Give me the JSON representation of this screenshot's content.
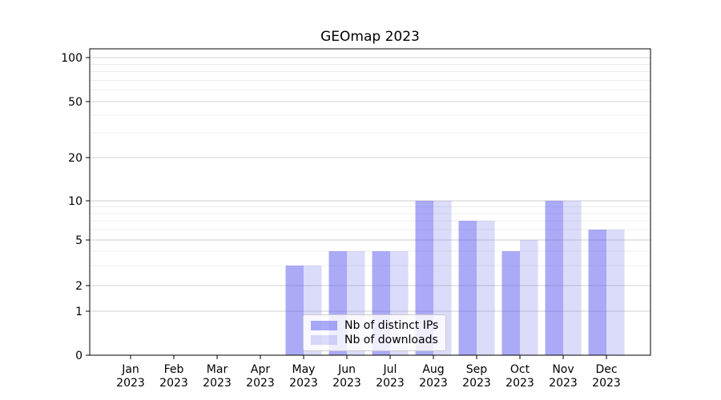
{
  "chart_data": {
    "type": "bar",
    "title": "GEOmap 2023",
    "categories": [
      "Jan",
      "Feb",
      "Mar",
      "Apr",
      "May",
      "Jun",
      "Jul",
      "Aug",
      "Sep",
      "Oct",
      "Nov",
      "Dec"
    ],
    "year": "2023",
    "series": [
      {
        "name": "Nb of distinct IPs",
        "color": "rgba(85,85,240,0.5)",
        "values": [
          0,
          0,
          0,
          0,
          3,
          4,
          4,
          10,
          7,
          4,
          10,
          6
        ]
      },
      {
        "name": "Nb of downloads",
        "color": "rgba(111,111,235,0.25)",
        "values": [
          0,
          0,
          0,
          0,
          3,
          4,
          4,
          10,
          7,
          5,
          10,
          6
        ]
      }
    ],
    "yscale": "symlog",
    "ylim": [
      0,
      110
    ],
    "yticks_major": [
      0,
      1,
      2,
      5,
      10,
      20,
      50,
      100
    ],
    "yticks_minor": [
      3,
      4,
      6,
      7,
      8,
      9,
      30,
      40,
      60,
      70,
      80,
      90
    ],
    "xlabel": "",
    "ylabel": "",
    "grid": "horizontal",
    "legend_position": "lower center"
  },
  "colors": {
    "grid_major": "#cfcfcf",
    "grid_minor": "#ececec",
    "axis": "#000000",
    "text": "#000000",
    "legend_border": "#cccccc",
    "legend_background": "rgba(255,255,255,0.8)"
  }
}
